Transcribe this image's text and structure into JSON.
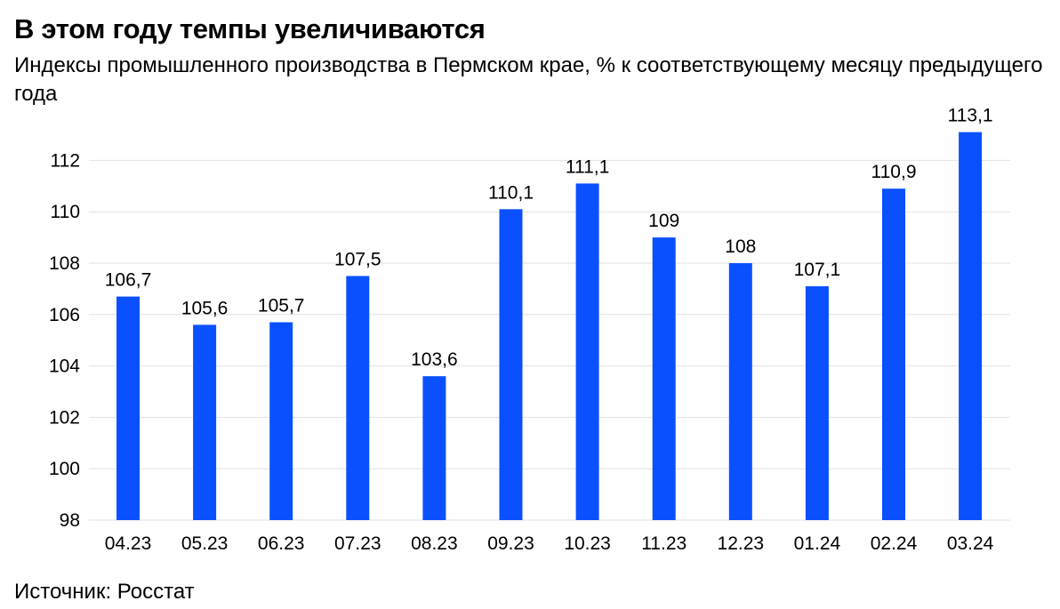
{
  "chart_data": {
    "type": "bar",
    "title": "В этом году темпы увеличиваются",
    "subtitle": "Индексы промышленного производства в Пермском крае, % к соответствующему месяцу предыдущего года",
    "source": "Источник: Росстат",
    "xlabel": "",
    "ylabel": "",
    "categories": [
      "04.23",
      "05.23",
      "06.23",
      "07.23",
      "08.23",
      "09.23",
      "10.23",
      "11.23",
      "12.23",
      "01.24",
      "02.24",
      "03.24"
    ],
    "values": [
      106.7,
      105.6,
      105.7,
      107.5,
      103.6,
      110.1,
      111.1,
      109,
      108,
      107.1,
      110.9,
      113.1
    ],
    "value_labels": [
      "106,7",
      "105,6",
      "105,7",
      "107,5",
      "103,6",
      "110,1",
      "111,1",
      "109",
      "108",
      "107,1",
      "110,9",
      "113,1"
    ],
    "yticks": [
      "98",
      "100",
      "102",
      "104",
      "106",
      "108",
      "110",
      "112"
    ],
    "ylim": [
      98,
      113.5
    ],
    "grid": true,
    "legend": "none",
    "colors": {
      "bar": "#0a50ff",
      "grid": "#e2e2e2"
    }
  }
}
